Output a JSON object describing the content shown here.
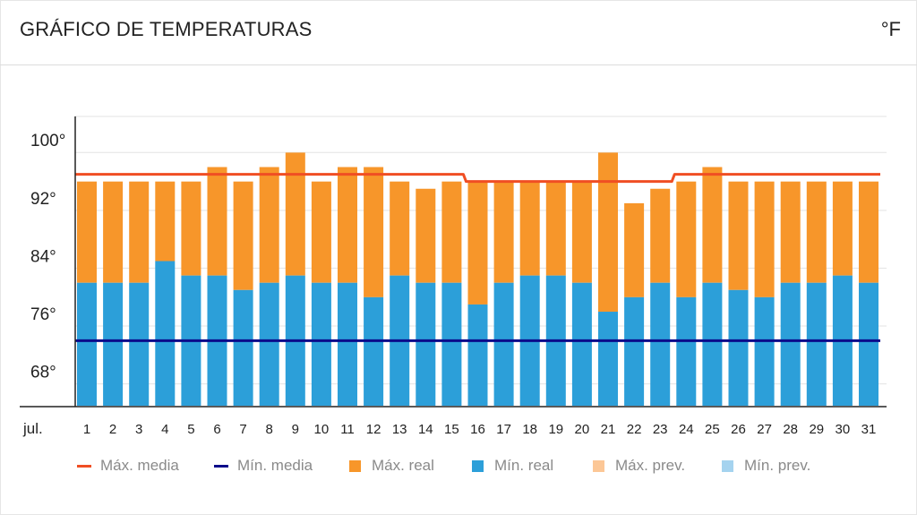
{
  "header": {
    "title": "GRÁFICO DE TEMPERATURAS",
    "unit": "°F"
  },
  "chart_data": {
    "type": "bar",
    "title": "GRÁFICO DE TEMPERATURAS",
    "x_label": "jul.",
    "categories": [
      "1",
      "2",
      "3",
      "4",
      "5",
      "6",
      "7",
      "8",
      "9",
      "10",
      "11",
      "12",
      "13",
      "14",
      "15",
      "16",
      "17",
      "18",
      "19",
      "20",
      "21",
      "22",
      "23",
      "24",
      "25",
      "26",
      "27",
      "28",
      "29",
      "30",
      "31"
    ],
    "ylim": [
      63,
      103
    ],
    "y_ticks": [
      68,
      76,
      84,
      92,
      100
    ],
    "y_tick_labels": [
      "68°",
      "76°",
      "84°",
      "92°",
      "100°"
    ],
    "grid": true,
    "series": [
      {
        "name": "Máx. real",
        "color": "#f7962a",
        "values": [
          94,
          94,
          94,
          94,
          94,
          96,
          94,
          96,
          98,
          94,
          96,
          96,
          94,
          93,
          94,
          94,
          94,
          94,
          94,
          94,
          98,
          91,
          93,
          94,
          96,
          94,
          94,
          94,
          94,
          94,
          94
        ]
      },
      {
        "name": "Mín. real",
        "color": "#2c9fd9",
        "values": [
          80,
          80,
          80,
          83,
          81,
          81,
          79,
          80,
          81,
          80,
          80,
          78,
          81,
          80,
          80,
          77,
          80,
          81,
          81,
          80,
          76,
          78,
          80,
          78,
          80,
          79,
          78,
          80,
          80,
          81,
          80
        ]
      },
      {
        "name": "Máx. media",
        "color": "#f04e23",
        "values": [
          95,
          95,
          95,
          95,
          95,
          95,
          95,
          95,
          95,
          95,
          95,
          95,
          95,
          95,
          95,
          94,
          94,
          94,
          94,
          94,
          94,
          94,
          94,
          95,
          95,
          95,
          95,
          95,
          95,
          95,
          95
        ]
      },
      {
        "name": "Mín. media",
        "color": "#0a0a8a",
        "values": [
          72,
          72,
          72,
          72,
          72,
          72,
          72,
          72,
          72,
          72,
          72,
          72,
          72,
          72,
          72,
          72,
          72,
          72,
          72,
          72,
          72,
          72,
          72,
          72,
          72,
          72,
          72,
          72,
          72,
          72,
          72
        ]
      }
    ],
    "legend": [
      {
        "label": "Máx. media",
        "color": "#f04e23",
        "kind": "line"
      },
      {
        "label": "Mín. media",
        "color": "#0a0a8a",
        "kind": "line"
      },
      {
        "label": "Máx. real",
        "color": "#f7962a",
        "kind": "box"
      },
      {
        "label": "Mín. real",
        "color": "#2c9fd9",
        "kind": "box"
      },
      {
        "label": "Máx. prev.",
        "color": "#fcc796",
        "kind": "box"
      },
      {
        "label": "Mín. prev.",
        "color": "#a5d3ef",
        "kind": "box"
      }
    ],
    "legend_position": "bottom"
  }
}
